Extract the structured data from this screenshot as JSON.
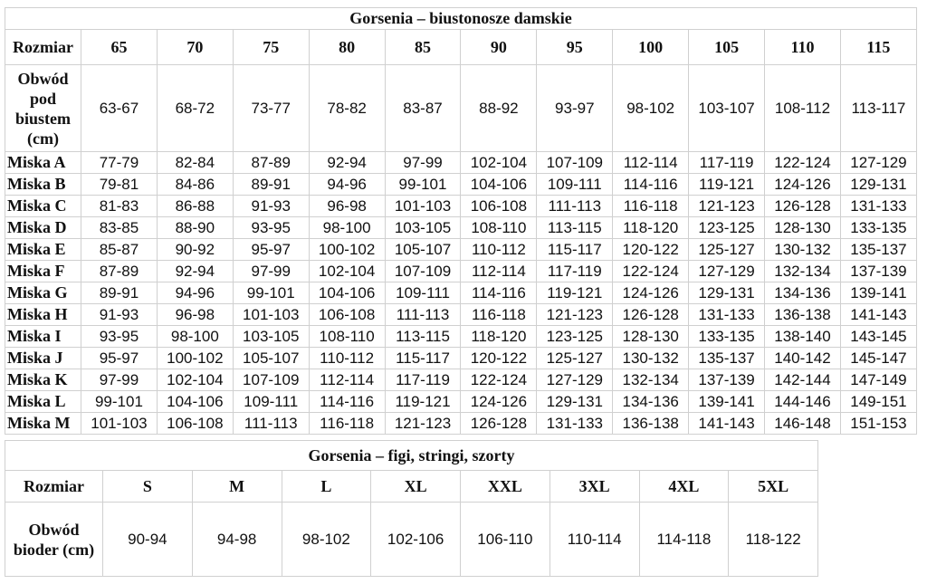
{
  "bras": {
    "title": "Gorsenia – biustonosze damskie",
    "header_label": "Rozmiar",
    "sizes": [
      "65",
      "70",
      "75",
      "80",
      "85",
      "90",
      "95",
      "100",
      "105",
      "110",
      "115"
    ],
    "underbust_label": "Obwód pod biustem (cm)",
    "underbust": [
      "63-67",
      "68-72",
      "73-77",
      "78-82",
      "83-87",
      "88-92",
      "93-97",
      "98-102",
      "103-107",
      "108-112",
      "113-117"
    ],
    "cups": [
      {
        "label": "Miska A",
        "values": [
          "77-79",
          "82-84",
          "87-89",
          "92-94",
          "97-99",
          "102-104",
          "107-109",
          "112-114",
          "117-119",
          "122-124",
          "127-129"
        ]
      },
      {
        "label": "Miska B",
        "values": [
          "79-81",
          "84-86",
          "89-91",
          "94-96",
          "99-101",
          "104-106",
          "109-111",
          "114-116",
          "119-121",
          "124-126",
          "129-131"
        ]
      },
      {
        "label": "Miska C",
        "values": [
          "81-83",
          "86-88",
          "91-93",
          "96-98",
          "101-103",
          "106-108",
          "111-113",
          "116-118",
          "121-123",
          "126-128",
          "131-133"
        ]
      },
      {
        "label": "Miska D",
        "values": [
          "83-85",
          "88-90",
          "93-95",
          "98-100",
          "103-105",
          "108-110",
          "113-115",
          "118-120",
          "123-125",
          "128-130",
          "133-135"
        ]
      },
      {
        "label": "Miska E",
        "values": [
          "85-87",
          "90-92",
          "95-97",
          "100-102",
          "105-107",
          "110-112",
          "115-117",
          "120-122",
          "125-127",
          "130-132",
          "135-137"
        ]
      },
      {
        "label": "Miska F",
        "values": [
          "87-89",
          "92-94",
          "97-99",
          "102-104",
          "107-109",
          "112-114",
          "117-119",
          "122-124",
          "127-129",
          "132-134",
          "137-139"
        ]
      },
      {
        "label": "Miska G",
        "values": [
          "89-91",
          "94-96",
          "99-101",
          "104-106",
          "109-111",
          "114-116",
          "119-121",
          "124-126",
          "129-131",
          "134-136",
          "139-141"
        ]
      },
      {
        "label": "Miska H",
        "values": [
          "91-93",
          "96-98",
          "101-103",
          "106-108",
          "111-113",
          "116-118",
          "121-123",
          "126-128",
          "131-133",
          "136-138",
          "141-143"
        ]
      },
      {
        "label": "Miska I",
        "values": [
          "93-95",
          "98-100",
          "103-105",
          "108-110",
          "113-115",
          "118-120",
          "123-125",
          "128-130",
          "133-135",
          "138-140",
          "143-145"
        ]
      },
      {
        "label": "Miska J",
        "values": [
          "95-97",
          "100-102",
          "105-107",
          "110-112",
          "115-117",
          "120-122",
          "125-127",
          "130-132",
          "135-137",
          "140-142",
          "145-147"
        ]
      },
      {
        "label": "Miska K",
        "values": [
          "97-99",
          "102-104",
          "107-109",
          "112-114",
          "117-119",
          "122-124",
          "127-129",
          "132-134",
          "137-139",
          "142-144",
          "147-149"
        ]
      },
      {
        "label": "Miska L",
        "values": [
          "99-101",
          "104-106",
          "109-111",
          "114-116",
          "119-121",
          "124-126",
          "129-131",
          "134-136",
          "139-141",
          "144-146",
          "149-151"
        ]
      },
      {
        "label": "Miska M",
        "values": [
          "101-103",
          "106-108",
          "111-113",
          "116-118",
          "121-123",
          "126-128",
          "131-133",
          "136-138",
          "141-143",
          "146-148",
          "151-153"
        ]
      }
    ]
  },
  "briefs": {
    "title": "Gorsenia – figi, stringi, szorty",
    "header_label": "Rozmiar",
    "sizes": [
      "S",
      "M",
      "L",
      "XL",
      "XXL",
      "3XL",
      "4XL",
      "5XL"
    ],
    "hip_label": "Obwód bioder (cm)",
    "hips": [
      "90-94",
      "94-98",
      "98-102",
      "102-106",
      "106-110",
      "110-114",
      "114-118",
      "118-122"
    ]
  }
}
